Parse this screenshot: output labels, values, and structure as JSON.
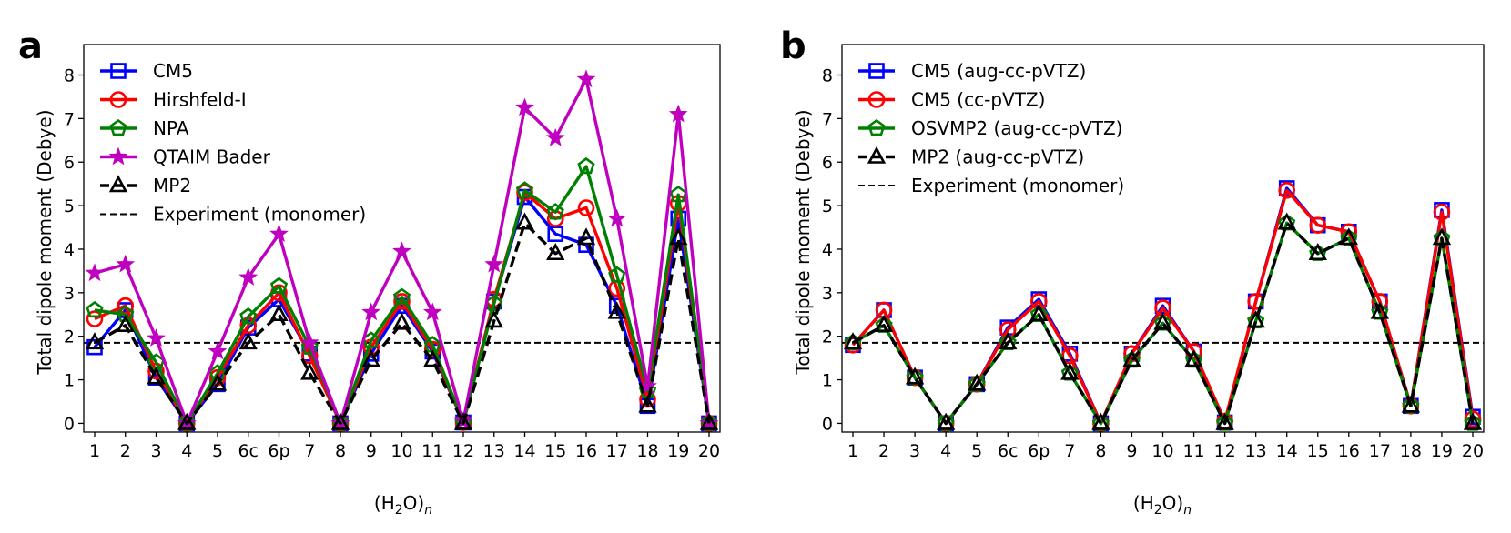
{
  "chart_data": [
    {
      "type": "line",
      "panel_label": "a",
      "ylabel": "Total dipole moment (Debye)",
      "xlabel_main": "(H",
      "xlabel_sub1": "2",
      "xlabel_mid": "O)",
      "xlabel_sub2": "n",
      "categories": [
        "1",
        "2",
        "3",
        "4",
        "5",
        "6c",
        "6p",
        "7",
        "8",
        "9",
        "10",
        "11",
        "12",
        "13",
        "14",
        "15",
        "16",
        "17",
        "18",
        "19",
        "20"
      ],
      "yticks": [
        "0",
        "1",
        "2",
        "3",
        "4",
        "5",
        "6",
        "7",
        "8"
      ],
      "ylim": [
        -0.2,
        8.7
      ],
      "legend_position": "top-left",
      "reference": {
        "name": "Experiment (monomer)",
        "value": 1.85,
        "color": "#000000"
      },
      "series": [
        {
          "name": "CM5",
          "color": "#0000ff",
          "marker": "square",
          "dashed": false,
          "values": [
            1.75,
            2.6,
            1.05,
            0.0,
            0.9,
            2.2,
            2.85,
            1.6,
            0.0,
            1.6,
            2.7,
            1.65,
            0.02,
            2.8,
            5.2,
            4.35,
            4.1,
            2.7,
            0.4,
            4.7,
            0.0
          ]
        },
        {
          "name": "Hirshfeld-I",
          "color": "#ff0000",
          "marker": "circle",
          "dashed": false,
          "values": [
            2.4,
            2.7,
            1.2,
            0.0,
            1.05,
            2.25,
            3.0,
            1.55,
            0.0,
            1.75,
            2.8,
            1.7,
            0.02,
            2.85,
            5.3,
            4.7,
            4.95,
            3.1,
            0.55,
            5.05,
            0.0
          ]
        },
        {
          "name": "NPA",
          "color": "#008000",
          "marker": "pentagon",
          "dashed": false,
          "values": [
            2.6,
            2.5,
            1.4,
            0.0,
            1.15,
            2.45,
            3.15,
            1.75,
            0.0,
            1.9,
            2.9,
            1.8,
            0.02,
            2.75,
            5.35,
            4.85,
            5.9,
            3.4,
            0.75,
            5.25,
            0.0
          ]
        },
        {
          "name": "QTAIM Bader",
          "color": "#bf00bf",
          "marker": "star",
          "dashed": false,
          "values": [
            3.45,
            3.65,
            1.95,
            0.0,
            1.65,
            3.35,
            4.35,
            1.85,
            0.0,
            2.55,
            3.95,
            2.55,
            0.05,
            3.65,
            7.25,
            6.55,
            7.9,
            4.7,
            0.85,
            7.1,
            0.0
          ]
        },
        {
          "name": "MP2",
          "color": "#000000",
          "marker": "triangle",
          "dashed": true,
          "values": [
            1.85,
            2.25,
            1.05,
            0.0,
            0.9,
            1.85,
            2.5,
            1.15,
            0.0,
            1.45,
            2.3,
            1.45,
            0.0,
            2.35,
            4.6,
            3.9,
            4.25,
            2.55,
            0.4,
            4.25,
            0.0
          ]
        }
      ]
    },
    {
      "type": "line",
      "panel_label": "b",
      "ylabel": "Total dipole moment (Debye)",
      "xlabel_main": "(H",
      "xlabel_sub1": "2",
      "xlabel_mid": "O)",
      "xlabel_sub2": "n",
      "categories": [
        "1",
        "2",
        "3",
        "4",
        "5",
        "6c",
        "6p",
        "7",
        "8",
        "9",
        "10",
        "11",
        "12",
        "13",
        "14",
        "15",
        "16",
        "17",
        "18",
        "19",
        "20"
      ],
      "yticks": [
        "0",
        "1",
        "2",
        "3",
        "4",
        "5",
        "6",
        "7",
        "8"
      ],
      "ylim": [
        -0.2,
        8.7
      ],
      "legend_position": "top-left",
      "reference": {
        "name": "Experiment (monomer)",
        "value": 1.85,
        "color": "#000000"
      },
      "series": [
        {
          "name": "CM5 (aug-cc-pVTZ)",
          "color": "#0000ff",
          "marker": "square",
          "dashed": false,
          "values": [
            1.8,
            2.6,
            1.05,
            0.0,
            0.9,
            2.2,
            2.85,
            1.6,
            0.0,
            1.6,
            2.7,
            1.65,
            0.02,
            2.8,
            5.4,
            4.55,
            4.4,
            2.8,
            0.4,
            4.9,
            0.15
          ]
        },
        {
          "name": "CM5 (cc-pVTZ)",
          "color": "#ff0000",
          "marker": "circle",
          "dashed": false,
          "values": [
            1.8,
            2.6,
            1.05,
            0.0,
            0.9,
            2.15,
            2.8,
            1.55,
            0.0,
            1.6,
            2.65,
            1.65,
            0.05,
            2.8,
            5.35,
            4.55,
            4.4,
            2.8,
            0.4,
            4.85,
            0.1
          ]
        },
        {
          "name": "OSVMP2 (aug-cc-pVTZ)",
          "color": "#008000",
          "marker": "pentagon",
          "dashed": false,
          "values": [
            1.85,
            2.25,
            1.05,
            0.0,
            0.9,
            1.85,
            2.5,
            1.15,
            0.0,
            1.45,
            2.3,
            1.45,
            0.0,
            2.35,
            4.6,
            3.9,
            4.25,
            2.55,
            0.4,
            4.25,
            0.0
          ]
        },
        {
          "name": "MP2 (aug-cc-pVTZ)",
          "color": "#000000",
          "marker": "triangle",
          "dashed": true,
          "values": [
            1.85,
            2.25,
            1.05,
            0.0,
            0.9,
            1.85,
            2.5,
            1.15,
            0.0,
            1.45,
            2.3,
            1.45,
            0.0,
            2.35,
            4.6,
            3.9,
            4.25,
            2.55,
            0.4,
            4.25,
            0.0
          ]
        }
      ]
    }
  ]
}
